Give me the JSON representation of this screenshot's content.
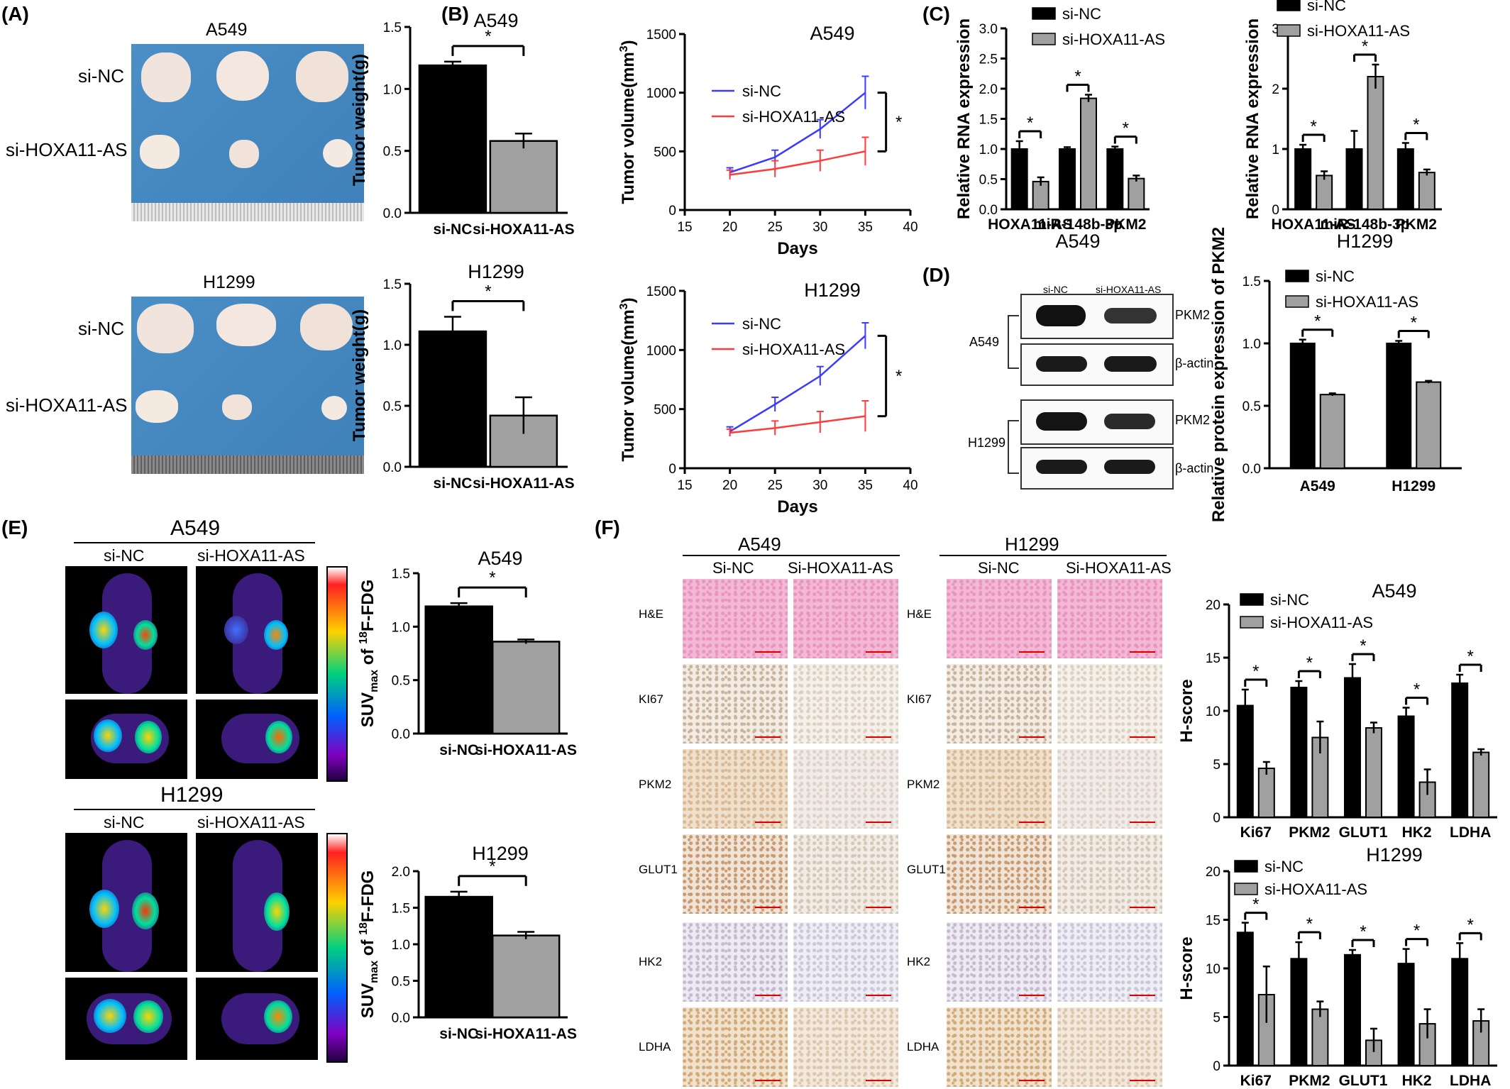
{
  "panel_labels": [
    "(A)",
    "(B)",
    "(C)",
    "(D)",
    "(E)",
    "(F)"
  ],
  "colors": {
    "black": "#000000",
    "gray": "#a0a0a0",
    "blue": "#3b3bff",
    "red": "#ff3b3b",
    "tissue": "#4a90c8"
  },
  "panel_a": {
    "photo_titles": [
      "A549",
      "H1299"
    ],
    "row_labels": [
      "si-NC",
      "si-HOXA11-AS"
    ]
  },
  "panel_d": {
    "blot_headers": [
      "si-NC",
      "si-HOXA11-AS"
    ],
    "cell_lines": [
      "A549",
      "H1299"
    ],
    "band_labels": [
      "PKM2",
      "β-actin",
      "PKM2",
      "β-actin"
    ]
  },
  "panel_e": {
    "pet_titles": [
      "A549",
      "H1299"
    ],
    "column_labels": [
      "si-NC",
      "si-HOXA11-AS"
    ]
  },
  "panel_f": {
    "ihc_titles": [
      "A549",
      "H1299"
    ],
    "column_labels": [
      "Si-NC",
      "Si-HOXA11-AS"
    ],
    "stains": [
      "H&E",
      "KI67",
      "PKM2",
      "GLUT1",
      "HK2",
      "LDHA"
    ]
  },
  "chart_data": [
    {
      "id": "a_a549",
      "type": "bar",
      "title": "A549",
      "xlabel": "",
      "ylabel": "Tumor weight(g)",
      "categories": [
        "si-NC",
        "si-HOXA11-AS"
      ],
      "values": [
        1.19,
        0.58
      ],
      "errors": [
        0.03,
        0.06
      ],
      "ylim": [
        0,
        1.5
      ],
      "yticks": [
        "0.0",
        "0.5",
        "1.0",
        "1.5"
      ],
      "significance": "*"
    },
    {
      "id": "a_h1299",
      "type": "bar",
      "title": "H1299",
      "xlabel": "",
      "ylabel": "Tumor weight(g)",
      "categories": [
        "si-NC",
        "si-HOXA11-AS"
      ],
      "values": [
        1.11,
        0.42
      ],
      "errors": [
        0.12,
        0.15
      ],
      "ylim": [
        0,
        1.5
      ],
      "yticks": [
        "0.0",
        "0.5",
        "1.0",
        "1.5"
      ],
      "significance": "*"
    },
    {
      "id": "b_a549",
      "type": "line",
      "title": "A549",
      "xlabel": "Days",
      "ylabel": "Tumor volume(mm³)",
      "x": [
        20,
        25,
        30,
        35
      ],
      "xlim": [
        15,
        40
      ],
      "ylim": [
        0,
        1500
      ],
      "xticks": [
        "15",
        "20",
        "25",
        "30",
        "35",
        "40"
      ],
      "yticks": [
        "0",
        "500",
        "1000",
        "1500"
      ],
      "series": [
        {
          "name": "si-NC",
          "values": [
            320,
            450,
            690,
            1000
          ],
          "errors": [
            40,
            60,
            80,
            140
          ]
        },
        {
          "name": "si-HOXA11-AS",
          "values": [
            300,
            350,
            420,
            500
          ],
          "errors": [
            40,
            70,
            90,
            120
          ]
        }
      ],
      "significance": "*"
    },
    {
      "id": "b_h1299",
      "type": "line",
      "title": "H1299",
      "xlabel": "Days",
      "ylabel": "Tumor volume(mm³)",
      "x": [
        20,
        25,
        30,
        35
      ],
      "xlim": [
        15,
        40
      ],
      "ylim": [
        0,
        1500
      ],
      "xticks": [
        "15",
        "20",
        "25",
        "30",
        "35",
        "40"
      ],
      "yticks": [
        "0",
        "500",
        "1000",
        "1500"
      ],
      "series": [
        {
          "name": "si-NC",
          "values": [
            310,
            540,
            780,
            1120
          ],
          "errors": [
            40,
            60,
            80,
            110
          ]
        },
        {
          "name": "si-HOXA11-AS",
          "values": [
            300,
            340,
            390,
            440
          ],
          "errors": [
            30,
            60,
            90,
            130
          ]
        }
      ],
      "significance": "*"
    },
    {
      "id": "c_a549",
      "type": "bar",
      "title": "",
      "xlabel": "A549",
      "ylabel": "Relative RNA expression",
      "categories": [
        "HOXA11-AS",
        "miR-148b-3p",
        "PKM2"
      ],
      "ylim": [
        0,
        3.0
      ],
      "yticks": [
        "0.0",
        "0.5",
        "1.0",
        "1.5",
        "2.0",
        "2.5",
        "3.0"
      ],
      "series": [
        {
          "name": "si-NC",
          "values": [
            1.0,
            1.0,
            1.0
          ],
          "errors": [
            0.13,
            0.03,
            0.04
          ]
        },
        {
          "name": "si-HOXA11-AS",
          "values": [
            0.46,
            1.84,
            0.51
          ],
          "errors": [
            0.07,
            0.06,
            0.05
          ]
        }
      ],
      "significance": [
        "*",
        "*",
        "*"
      ]
    },
    {
      "id": "c_h1299",
      "type": "bar",
      "title": "",
      "xlabel": "H1299",
      "ylabel": "Relative RNA expression",
      "categories": [
        "HOXA11-AS",
        "miR-148b-3p",
        "PKM2"
      ],
      "ylim": [
        0,
        3
      ],
      "yticks": [
        "0",
        "1",
        "2",
        "3"
      ],
      "series": [
        {
          "name": "si-NC",
          "values": [
            1.0,
            1.0,
            1.0
          ],
          "errors": [
            0.07,
            0.3,
            0.1
          ]
        },
        {
          "name": "si-HOXA11-AS",
          "values": [
            0.56,
            2.2,
            0.61
          ],
          "errors": [
            0.07,
            0.2,
            0.05
          ]
        }
      ],
      "significance": [
        "*",
        "*",
        "*"
      ]
    },
    {
      "id": "d_bar",
      "type": "bar",
      "title": "",
      "xlabel": "",
      "ylabel": "Relative protein expression of PKM2",
      "categories": [
        "A549",
        "H1299"
      ],
      "ylim": [
        0,
        1.5
      ],
      "yticks": [
        "0.0",
        "0.5",
        "1.0",
        "1.5"
      ],
      "series": [
        {
          "name": "si-NC",
          "values": [
            1.0,
            1.0
          ],
          "errors": [
            0.03,
            0.02
          ]
        },
        {
          "name": "si-HOXA11-AS",
          "values": [
            0.59,
            0.69
          ],
          "errors": [
            0.01,
            0.01
          ]
        }
      ],
      "significance": [
        "*",
        "*"
      ]
    },
    {
      "id": "e_a549",
      "type": "bar",
      "title": "A549",
      "xlabel": "",
      "ylabel": "SUVmax of 18F-FDG",
      "categories": [
        "si-NC",
        "si-HOXA11-AS"
      ],
      "values": [
        1.19,
        0.86
      ],
      "errors": [
        0.03,
        0.02
      ],
      "ylim": [
        0,
        1.5
      ],
      "yticks": [
        "0.0",
        "0.5",
        "1.0",
        "1.5"
      ],
      "significance": "*"
    },
    {
      "id": "e_h1299",
      "type": "bar",
      "title": "H1299",
      "xlabel": "",
      "ylabel": "SUVmax of 18F-FDG",
      "categories": [
        "si-NC",
        "si-HOXA11-AS"
      ],
      "values": [
        1.65,
        1.12
      ],
      "errors": [
        0.07,
        0.05
      ],
      "ylim": [
        0,
        2.0
      ],
      "yticks": [
        "0.0",
        "0.5",
        "1.0",
        "1.5",
        "2.0"
      ],
      "significance": "*"
    },
    {
      "id": "f_a549",
      "type": "bar",
      "title": "A549",
      "xlabel": "",
      "ylabel": "H-score",
      "categories": [
        "Ki67",
        "PKM2",
        "GLUT1",
        "HK2",
        "LDHA"
      ],
      "ylim": [
        0,
        20
      ],
      "yticks": [
        "0",
        "5",
        "10",
        "15",
        "20"
      ],
      "series": [
        {
          "name": "si-NC",
          "values": [
            10.5,
            12.2,
            13.1,
            9.5,
            12.6
          ],
          "errors": [
            1.5,
            0.6,
            1.3,
            0.8,
            0.8
          ]
        },
        {
          "name": "si-HOXA11-AS",
          "values": [
            4.6,
            7.5,
            8.4,
            3.3,
            6.1
          ],
          "errors": [
            0.6,
            1.5,
            0.5,
            1.2,
            0.3
          ]
        }
      ],
      "significance": [
        "*",
        "*",
        "*",
        "*",
        "*"
      ]
    },
    {
      "id": "f_h1299",
      "type": "bar",
      "title": "H1299",
      "xlabel": "",
      "ylabel": "H-score",
      "categories": [
        "Ki67",
        "PKM2",
        "GLUT1",
        "HK2",
        "LDHA"
      ],
      "ylim": [
        0,
        20
      ],
      "yticks": [
        "0",
        "5",
        "10",
        "15",
        "20"
      ],
      "series": [
        {
          "name": "si-NC",
          "values": [
            13.7,
            11.0,
            11.4,
            10.5,
            11.0
          ],
          "errors": [
            1.0,
            1.7,
            0.5,
            1.5,
            1.6
          ]
        },
        {
          "name": "si-HOXA11-AS",
          "values": [
            7.3,
            5.8,
            2.6,
            4.3,
            4.6
          ],
          "errors": [
            2.9,
            0.8,
            1.2,
            1.5,
            1.2
          ]
        }
      ],
      "significance": [
        "*",
        "*",
        "*",
        "*",
        "*"
      ]
    }
  ]
}
